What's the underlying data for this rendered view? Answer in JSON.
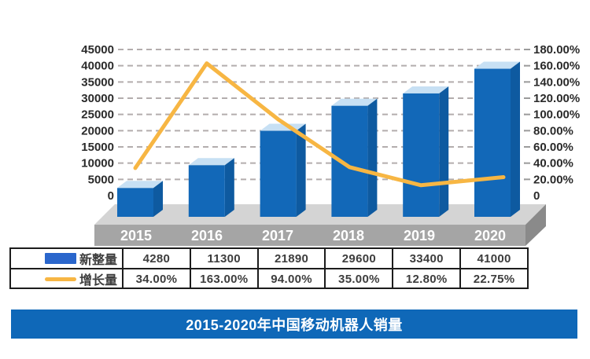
{
  "title_bar": {
    "text": "2015-2020年中国移动机器人销量",
    "bg_color": "#0f68b8",
    "text_color": "#ffffff"
  },
  "chart_data": {
    "type": "bar",
    "subtype": "3d-column-with-line-overlay",
    "categories": [
      "2015",
      "2016",
      "2017",
      "2018",
      "2019",
      "2020"
    ],
    "series": [
      {
        "name": "新整量",
        "type": "bar",
        "axis": "left",
        "values": [
          4280,
          11300,
          21890,
          29600,
          33400,
          41000
        ],
        "color": "#1268b8",
        "color_top": "#c7e0f4",
        "color_side": "#0e5aa0"
      },
      {
        "name": "增长量",
        "type": "line",
        "axis": "right",
        "values": [
          34.0,
          163.0,
          94.0,
          35.0,
          12.8,
          22.75
        ],
        "labels": [
          "34.00%",
          "163.00%",
          "94.00%",
          "35.00%",
          "12.80%",
          "22.75%"
        ],
        "color": "#f7b643"
      }
    ],
    "left_axis": {
      "min": 0,
      "max": 45000,
      "step": 5000,
      "tick_labels": [
        "45000",
        "40000",
        "35000",
        "30000",
        "25000",
        "20000",
        "15000",
        "10000",
        "5000",
        "0"
      ]
    },
    "right_axis": {
      "min": 0,
      "max": 180,
      "step": 20,
      "tick_labels": [
        "180.00%",
        "160.00%",
        "140.00%",
        "120.00%",
        "100.00%",
        "80.00%",
        "60.00%",
        "40.00%",
        "20.00%",
        "0"
      ]
    },
    "grid": "horizontal-dashed",
    "grid_color": "#b3adad",
    "platform_colors": {
      "top": "#d4d4d4",
      "front": "#a5a5a5",
      "side": "#8a8a8a"
    },
    "category_label_color": "#ffffff",
    "axis_label_color": "#2a2a2a",
    "legend_position": "table-left-column"
  },
  "table": {
    "rows": [
      {
        "legend": "新整量",
        "swatch": "bar-swatch",
        "swatch_color": "#2a66cc",
        "cells": [
          "4280",
          "11300",
          "21890",
          "29600",
          "33400",
          "41000"
        ]
      },
      {
        "legend": "增长量",
        "swatch": "line-swatch",
        "swatch_color": "#f7b643",
        "cells": [
          "34.00%",
          "163.00%",
          "94.00%",
          "35.00%",
          "12.80%",
          "22.75%"
        ]
      }
    ]
  }
}
